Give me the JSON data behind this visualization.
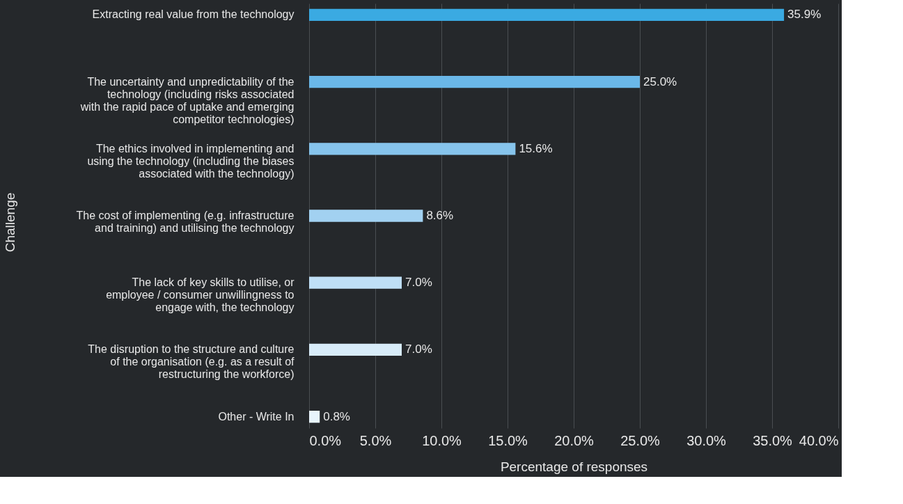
{
  "chart_data": {
    "type": "bar",
    "orientation": "horizontal",
    "xlabel": "Percentage of responses",
    "ylabel": "Challenge",
    "categories": [
      "Extracting real value from the technology",
      "The uncertainty and unpredictability of the\ntechnology (including risks associated\nwith the rapid pace of uptake and emerging\ncompetitor technologies)",
      "The ethics involved in implementing and\nusing the technology (including the biases\nassociated with the technology)",
      "The cost of implementing (e.g. infrastructure\nand training) and utilising the technology",
      "The lack of key skills to utilise, or\nemployee / consumer unwillingness to\nengage with, the technology",
      "The disruption to the structure and culture\nof the organisation (e.g. as a result of\nrestructuring the workforce)",
      "Other - Write In"
    ],
    "values": [
      35.9,
      25.0,
      15.6,
      8.6,
      7.0,
      7.0,
      0.8
    ],
    "value_labels": [
      "35.9%",
      "25.0%",
      "15.6%",
      "8.6%",
      "7.0%",
      "7.0%",
      "0.8%"
    ],
    "colors": [
      "#3aaae2",
      "#6ab7e8",
      "#86c4ec",
      "#a2d1f1",
      "#bfdff6",
      "#d8ecf9",
      "#e8f4fc"
    ],
    "xlim": [
      0,
      40
    ],
    "xticks": [
      {
        "value": 0,
        "label": "0.0%"
      },
      {
        "value": 5,
        "label": "5.0%"
      },
      {
        "value": 10,
        "label": "10.0%"
      },
      {
        "value": 15,
        "label": "15.0%"
      },
      {
        "value": 20,
        "label": "20.0%"
      },
      {
        "value": 25,
        "label": "25.0%"
      },
      {
        "value": 30,
        "label": "30.0%"
      },
      {
        "value": 35,
        "label": "35.0%"
      },
      {
        "value": 40,
        "label": "40.0%"
      }
    ],
    "grid": "x"
  }
}
